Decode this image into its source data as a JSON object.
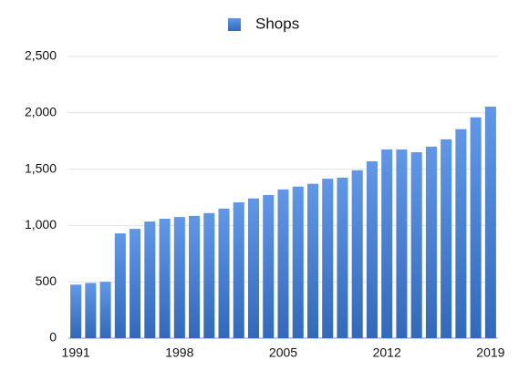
{
  "chart_data": {
    "type": "bar",
    "categories": [
      "1991",
      null,
      null,
      null,
      null,
      null,
      null,
      "1998",
      null,
      null,
      null,
      null,
      null,
      null,
      "2005",
      null,
      null,
      null,
      null,
      null,
      null,
      "2012",
      null,
      null,
      null,
      null,
      null,
      null,
      "2019"
    ],
    "series": [
      {
        "name": "Shops",
        "color": "#3d80e4",
        "values": [
          475,
          490,
          500,
          930,
          970,
          1035,
          1060,
          1075,
          1085,
          1110,
          1150,
          1205,
          1240,
          1270,
          1320,
          1345,
          1370,
          1415,
          1425,
          1490,
          1570,
          1675,
          1675,
          1650,
          1700,
          1765,
          1855,
          1960,
          2055
        ]
      }
    ],
    "ylim": [
      0,
      2500
    ],
    "yticks": [
      0,
      500,
      {
        "value": 1000,
        "label": "1,000"
      },
      {
        "value": 1500,
        "label": "1,500"
      },
      {
        "value": 2000,
        "label": "2,000"
      },
      {
        "value": 2500,
        "label": "2,500"
      }
    ],
    "grid": true,
    "legend": "top"
  }
}
